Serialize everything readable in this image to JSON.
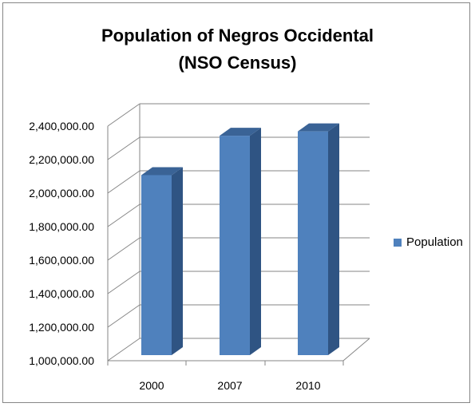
{
  "chart_data": {
    "type": "bar",
    "title_line1": "Population of Negros Occidental",
    "title_line2": "(NSO Census)",
    "categories": [
      "2000",
      "2007",
      "2010"
    ],
    "series": [
      {
        "name": "Population",
        "values": [
          2136000,
          2371000,
          2397000
        ]
      }
    ],
    "ylim": [
      1000000,
      2400000
    ],
    "y_ticks": [
      "1,000,000.00",
      "1,200,000.00",
      "1,400,000.00",
      "1,600,000.00",
      "1,800,000.00",
      "2,000,000.00",
      "2,200,000.00",
      "2,400,000.00"
    ],
    "grid": true,
    "legend_position": "right",
    "colors": {
      "bar_front": "#4F81BD",
      "bar_side": "#2F5483",
      "bar_top": "#3A6396",
      "grid": "#868686"
    }
  }
}
